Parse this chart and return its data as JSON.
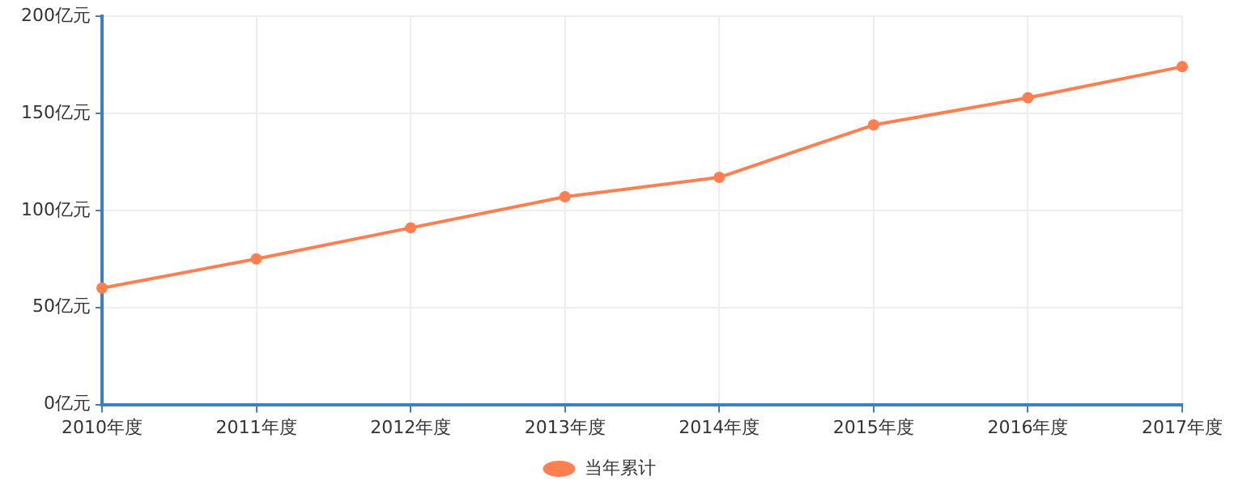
{
  "chart_data": {
    "type": "line",
    "categories": [
      "2010年度",
      "2011年度",
      "2012年度",
      "2013年度",
      "2014年度",
      "2015年度",
      "2016年度",
      "2017年度"
    ],
    "series": [
      {
        "name": "当年累计",
        "color": "#ff7f50",
        "values": [
          60,
          75,
          91,
          107,
          117,
          144,
          158,
          174
        ]
      }
    ],
    "ylim": [
      0,
      200
    ],
    "yticks": [
      {
        "value": 0,
        "label": "0亿元"
      },
      {
        "value": 50,
        "label": "50亿元"
      },
      {
        "value": 100,
        "label": "100亿元"
      },
      {
        "value": 150,
        "label": "150亿元"
      },
      {
        "value": 200,
        "label": "200亿元"
      }
    ],
    "grid": true,
    "legend": "bottom",
    "marker": "circle",
    "line_style": "solid"
  }
}
